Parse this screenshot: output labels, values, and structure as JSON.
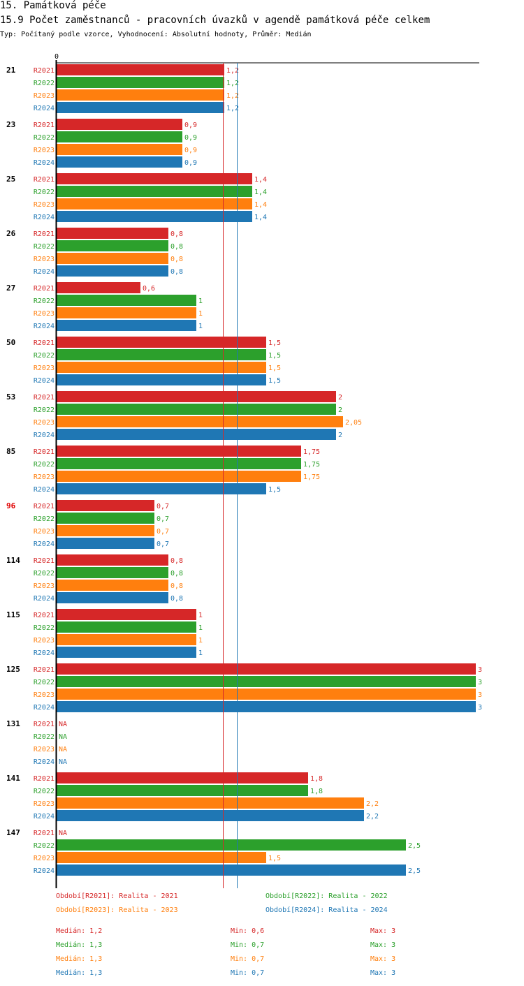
{
  "header": {
    "section_title": "15. Památková péče",
    "chart_title": "15.9 Počet zaměstnanců - pracovních úvazků v agendě památková péče celkem",
    "subtitle": "Typ: Počítaný podle vzorce, Vyhodnocení: Absolutní hodnoty, Průměr: Medián"
  },
  "colors": {
    "R2021": "#d62728",
    "R2022": "#2ca02c",
    "R2023": "#ff7f0e",
    "R2024": "#1f77b4",
    "highlight_group": "#e00000"
  },
  "chart_data": {
    "type": "bar",
    "orientation": "horizontal",
    "title": "15.9 Počet zaměstnanců - pracovních úvazků v agendě památková péče celkem",
    "xlim": [
      0,
      3
    ],
    "x_tick_labels": [
      "0"
    ],
    "series_names": [
      "R2021",
      "R2022",
      "R2023",
      "R2024"
    ],
    "categories": [
      "21",
      "23",
      "25",
      "26",
      "27",
      "50",
      "53",
      "85",
      "96",
      "114",
      "115",
      "125",
      "131",
      "141",
      "147"
    ],
    "highlighted_category": "96",
    "series": [
      {
        "name": "R2021",
        "values": [
          1.2,
          0.9,
          1.4,
          0.8,
          0.6,
          1.5,
          2,
          1.75,
          0.7,
          0.8,
          1,
          3,
          null,
          1.8,
          null
        ]
      },
      {
        "name": "R2022",
        "values": [
          1.2,
          0.9,
          1.4,
          0.8,
          1,
          1.5,
          2,
          1.75,
          0.7,
          0.8,
          1,
          3,
          null,
          1.8,
          2.5
        ]
      },
      {
        "name": "R2023",
        "values": [
          1.2,
          0.9,
          1.4,
          0.8,
          1,
          1.5,
          2.05,
          1.75,
          0.7,
          0.8,
          1,
          3,
          null,
          2.2,
          1.5
        ]
      },
      {
        "name": "R2024",
        "values": [
          1.2,
          0.9,
          1.4,
          0.8,
          1,
          1.5,
          2,
          1.5,
          0.7,
          0.8,
          1,
          3,
          null,
          2.2,
          2.5
        ]
      }
    ],
    "na_label": "NA",
    "reference_lines": [
      {
        "series": "R2021",
        "type": "median",
        "value": 1.2
      },
      {
        "series": "R2022",
        "type": "median",
        "value": 1.3
      },
      {
        "series": "R2023",
        "type": "median",
        "value": 1.3
      },
      {
        "series": "R2024",
        "type": "median",
        "value": 1.3
      }
    ],
    "legend": [
      {
        "series": "R2021",
        "text": "Období[R2021]: Realita - 2021"
      },
      {
        "series": "R2022",
        "text": "Období[R2022]: Realita - 2022"
      },
      {
        "series": "R2023",
        "text": "Období[R2023]: Realita - 2023"
      },
      {
        "series": "R2024",
        "text": "Období[R2024]: Realita - 2024"
      }
    ],
    "stats": [
      {
        "series": "R2021",
        "median": "Medián: 1,2",
        "min": "Min: 0,6",
        "max": "Max: 3"
      },
      {
        "series": "R2022",
        "median": "Medián: 1,3",
        "min": "Min: 0,7",
        "max": "Max: 3"
      },
      {
        "series": "R2023",
        "median": "Medián: 1,3",
        "min": "Min: 0,7",
        "max": "Max: 3"
      },
      {
        "series": "R2024",
        "median": "Medián: 1,3",
        "min": "Min: 0,7",
        "max": "Max: 3"
      }
    ]
  }
}
